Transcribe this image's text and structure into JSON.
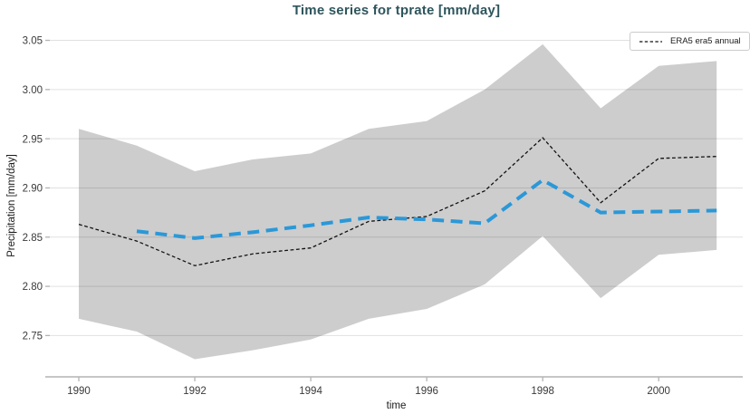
{
  "chart_data": {
    "type": "line",
    "title": "Time series for tprate [mm/day]",
    "xlabel": "time",
    "ylabel": "Precipitation [mm/day]",
    "xlim": [
      1989.5,
      2001.45
    ],
    "ylim": [
      2.708,
      3.056
    ],
    "xticks": [
      1990,
      1992,
      1994,
      1996,
      1998,
      2000
    ],
    "yticks": [
      3.05,
      3.0,
      2.95,
      2.9,
      2.85,
      2.8,
      2.75
    ],
    "grid": true,
    "legend": {
      "position": "upper right",
      "entries": [
        {
          "label": "ERA5 era5 annual",
          "style": "black-dashed"
        }
      ]
    },
    "colors": {
      "title": "#2e555c",
      "era5_line": "#111111",
      "blue_line": "#2b98d8",
      "band_fill": "#cdcdcd",
      "grid_line": "rgba(0,0,0,0.12)",
      "axis_line": "#b3b3b3",
      "tick_label": "#3a3a3a"
    },
    "band": {
      "name": "shaded min-max range",
      "x": [
        1990,
        1991,
        1992,
        1993,
        1994,
        1995,
        1996,
        1997,
        1998,
        1999,
        2000,
        2001
      ],
      "upper": [
        2.96,
        2.943,
        2.917,
        2.929,
        2.935,
        2.96,
        2.968,
        3.0,
        3.046,
        2.981,
        3.024,
        3.029
      ],
      "lower": [
        2.767,
        2.754,
        2.726,
        2.735,
        2.746,
        2.767,
        2.777,
        2.802,
        2.851,
        2.788,
        2.832,
        2.837
      ]
    },
    "series": [
      {
        "name": "ERA5 era5 annual",
        "style": "dashed-thin-black",
        "x": [
          1990,
          1991,
          1992,
          1993,
          1994,
          1995,
          1996,
          1997,
          1998,
          1999,
          2000,
          2001
        ],
        "y": [
          2.863,
          2.846,
          2.821,
          2.833,
          2.839,
          2.866,
          2.871,
          2.897,
          2.951,
          2.885,
          2.93,
          2.932
        ]
      },
      {
        "name": "(unlabeled blue dashed series)",
        "style": "dashed-thick-blue",
        "x": [
          1991,
          1992,
          1993,
          1994,
          1995,
          1996,
          1997,
          1998,
          1999,
          2000,
          2001
        ],
        "y": [
          2.856,
          2.849,
          2.855,
          2.862,
          2.87,
          2.868,
          2.864,
          2.908,
          2.875,
          2.876,
          2.877
        ]
      }
    ]
  }
}
